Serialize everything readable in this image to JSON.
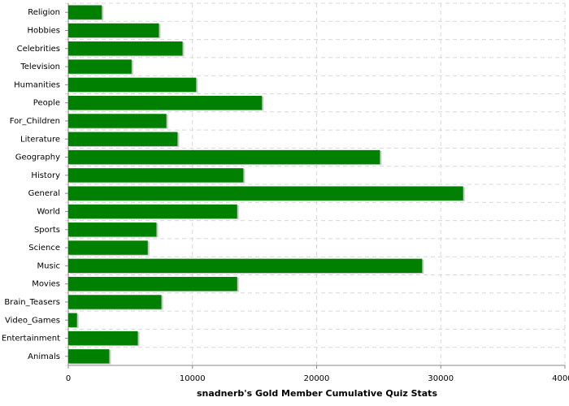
{
  "chart_data": {
    "type": "bar",
    "orientation": "horizontal",
    "title": "snadnerb's Gold Member Cumulative Quiz Stats",
    "categories": [
      "Religion",
      "Hobbies",
      "Celebrities",
      "Television",
      "Humanities",
      "People",
      "For_Children",
      "Literature",
      "Geography",
      "History",
      "General",
      "World",
      "Sports",
      "Science",
      "Music",
      "Movies",
      "Brain_Teasers",
      "Video_Games",
      "Entertainment",
      "Animals"
    ],
    "values": [
      2700,
      7300,
      9200,
      5100,
      10300,
      15600,
      7900,
      8800,
      25100,
      14100,
      31800,
      13600,
      7100,
      6400,
      28500,
      13600,
      7500,
      700,
      5600,
      3300
    ],
    "color": "#008000",
    "xlim": [
      0,
      40000
    ],
    "xticks": [
      0,
      10000,
      20000,
      30000,
      40000
    ],
    "grid": true
  }
}
